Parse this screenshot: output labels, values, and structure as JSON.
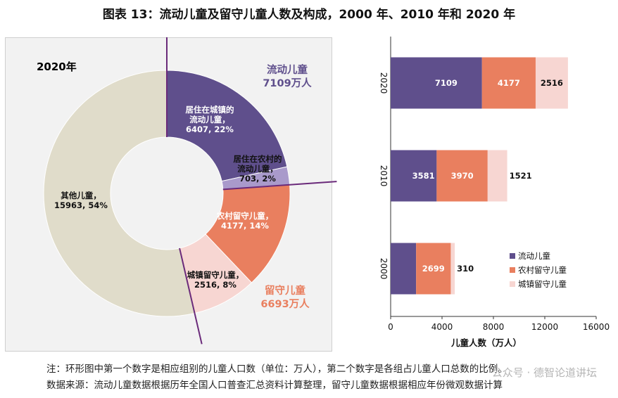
{
  "title": "图表 13：流动儿童及留守儿童人数及构成，2000 年、2010 年和 2020 年",
  "colors": {
    "migrant_urban": "#5f4f8c",
    "migrant_rural": "#a99acb",
    "left_rural": "#e97f5f",
    "left_urban": "#f7d6d2",
    "other": "#e0dcca",
    "group_line": "#6a2a7a"
  },
  "chart_data": [
    {
      "type": "pie",
      "year_label": "2020年",
      "slices": [
        {
          "name": "居住在城镇的流动儿童",
          "label_lines": [
            "居住在城镇的",
            "流动儿童，",
            "6407, 22%"
          ],
          "value": 6407,
          "percent": 22,
          "color_key": "migrant_urban"
        },
        {
          "name": "居住在农村的流动儿童",
          "label_lines": [
            "居住在农村的",
            "流动儿童，",
            "703, 2%"
          ],
          "value": 703,
          "percent": 2,
          "color_key": "migrant_rural"
        },
        {
          "name": "农村留守儿童",
          "label_lines": [
            "农村留守儿童，",
            "4177, 14%"
          ],
          "value": 4177,
          "percent": 14,
          "color_key": "left_rural"
        },
        {
          "name": "城镇留守儿童",
          "label_lines": [
            "城镇留守儿童，",
            "2516, 8%"
          ],
          "value": 2516,
          "percent": 8,
          "color_key": "left_urban"
        },
        {
          "name": "其他儿童",
          "label_lines": [
            "其他儿童，",
            "15963, 54%"
          ],
          "value": 15963,
          "percent": 54,
          "color_key": "other"
        }
      ],
      "group_labels": [
        {
          "name": "流动儿童",
          "lines": [
            "流动儿童",
            "7109万人"
          ]
        },
        {
          "name": "留守儿童",
          "lines": [
            "留守儿童",
            "6693万人"
          ]
        }
      ]
    },
    {
      "type": "bar",
      "orientation": "horizontal",
      "stacked": true,
      "categories": [
        "2020",
        "2010",
        "2000"
      ],
      "series": [
        {
          "name": "流动儿童",
          "values": [
            7109,
            3581,
            1982
          ],
          "color_key": "migrant_urban"
        },
        {
          "name": "农村留守儿童",
          "values": [
            4177,
            3970,
            2699
          ],
          "color_key": "left_rural"
        },
        {
          "name": "城镇留守儿童",
          "values": [
            2516,
            1521,
            310
          ],
          "color_key": "left_urban"
        }
      ],
      "xlabel": "儿童人数（万人）",
      "xlim": [
        0,
        16000
      ],
      "xticks": [
        "0",
        "4000",
        "8000",
        "12000",
        "16000"
      ],
      "legend_position": "bottom-right"
    }
  ],
  "notes": {
    "note": "注：环形图中第一个数字是相应组别的儿童人口数（单位：万人），第二个数字是各组占儿童人口总数的比例。",
    "source": "数据来源：流动儿童数据根据历年全国人口普查汇总资料计算整理，留守儿童数据根据相应年份微观数据计算"
  },
  "watermark": "公众号 · 德智论道讲坛"
}
